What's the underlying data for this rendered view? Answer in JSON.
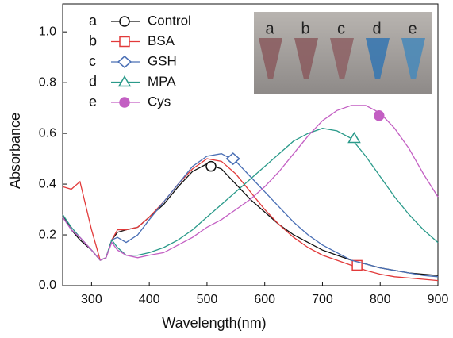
{
  "chart_data": {
    "type": "line",
    "xlabel": "Wavelength(nm)",
    "ylabel": "Absorbance",
    "x": [
      250,
      265,
      280,
      300,
      315,
      325,
      335,
      345,
      360,
      380,
      400,
      425,
      450,
      475,
      500,
      525,
      550,
      575,
      600,
      625,
      650,
      675,
      700,
      725,
      750,
      775,
      800,
      825,
      850,
      875,
      900
    ],
    "series": [
      {
        "label": "a",
        "name": "Control",
        "color": "#111111",
        "marker": "circle-open",
        "marker_x": 507,
        "marker_y": 0.47,
        "values": [
          0.28,
          0.22,
          0.18,
          0.14,
          0.1,
          0.11,
          0.18,
          0.21,
          0.22,
          0.23,
          0.27,
          0.32,
          0.39,
          0.45,
          0.48,
          0.46,
          0.4,
          0.34,
          0.29,
          0.24,
          0.2,
          0.17,
          0.14,
          0.12,
          0.1,
          0.085,
          0.07,
          0.06,
          0.05,
          0.045,
          0.04
        ]
      },
      {
        "label": "b",
        "name": "BSA",
        "color": "#e23a3a",
        "marker": "square-open",
        "marker_x": 760,
        "marker_y": 0.08,
        "values": [
          0.39,
          0.38,
          0.41,
          0.22,
          0.1,
          0.11,
          0.18,
          0.22,
          0.22,
          0.23,
          0.27,
          0.33,
          0.4,
          0.46,
          0.5,
          0.49,
          0.44,
          0.37,
          0.3,
          0.24,
          0.19,
          0.15,
          0.12,
          0.1,
          0.08,
          0.06,
          0.045,
          0.035,
          0.03,
          0.025,
          0.02
        ]
      },
      {
        "label": "c",
        "name": "GSH",
        "color": "#4a6fb5",
        "marker": "diamond-open",
        "marker_x": 545,
        "marker_y": 0.5,
        "values": [
          0.27,
          0.22,
          0.19,
          0.14,
          0.1,
          0.11,
          0.18,
          0.19,
          0.17,
          0.2,
          0.26,
          0.33,
          0.4,
          0.47,
          0.51,
          0.52,
          0.49,
          0.43,
          0.37,
          0.31,
          0.25,
          0.2,
          0.16,
          0.13,
          0.1,
          0.085,
          0.07,
          0.06,
          0.05,
          0.04,
          0.035
        ]
      },
      {
        "label": "d",
        "name": "MPA",
        "color": "#2a9a8a",
        "marker": "triangle-open",
        "marker_x": 755,
        "marker_y": 0.58,
        "values": [
          0.28,
          0.23,
          0.19,
          0.14,
          0.1,
          0.11,
          0.18,
          0.15,
          0.12,
          0.12,
          0.13,
          0.15,
          0.18,
          0.22,
          0.27,
          0.32,
          0.37,
          0.42,
          0.47,
          0.52,
          0.57,
          0.6,
          0.62,
          0.61,
          0.58,
          0.51,
          0.43,
          0.35,
          0.28,
          0.22,
          0.17
        ]
      },
      {
        "label": "e",
        "name": "Cys",
        "color": "#c35fc3",
        "marker": "circle-filled",
        "marker_x": 798,
        "marker_y": 0.67,
        "values": [
          0.27,
          0.22,
          0.19,
          0.14,
          0.1,
          0.11,
          0.17,
          0.14,
          0.12,
          0.11,
          0.12,
          0.13,
          0.16,
          0.19,
          0.23,
          0.26,
          0.3,
          0.34,
          0.39,
          0.45,
          0.52,
          0.59,
          0.65,
          0.69,
          0.71,
          0.71,
          0.68,
          0.62,
          0.54,
          0.44,
          0.35
        ]
      }
    ],
    "inset_labels": [
      "a",
      "b",
      "c",
      "d",
      "e"
    ],
    "xlim": [
      250,
      900
    ],
    "xticks": [
      300,
      400,
      500,
      600,
      700,
      800,
      900
    ],
    "ylim": [
      0,
      1.11
    ],
    "yticks": [
      {
        "value": 0,
        "label": "0.0"
      },
      0.2,
      0.4,
      0.6,
      0.8,
      {
        "value": 1,
        "label": "1.0"
      }
    ]
  }
}
